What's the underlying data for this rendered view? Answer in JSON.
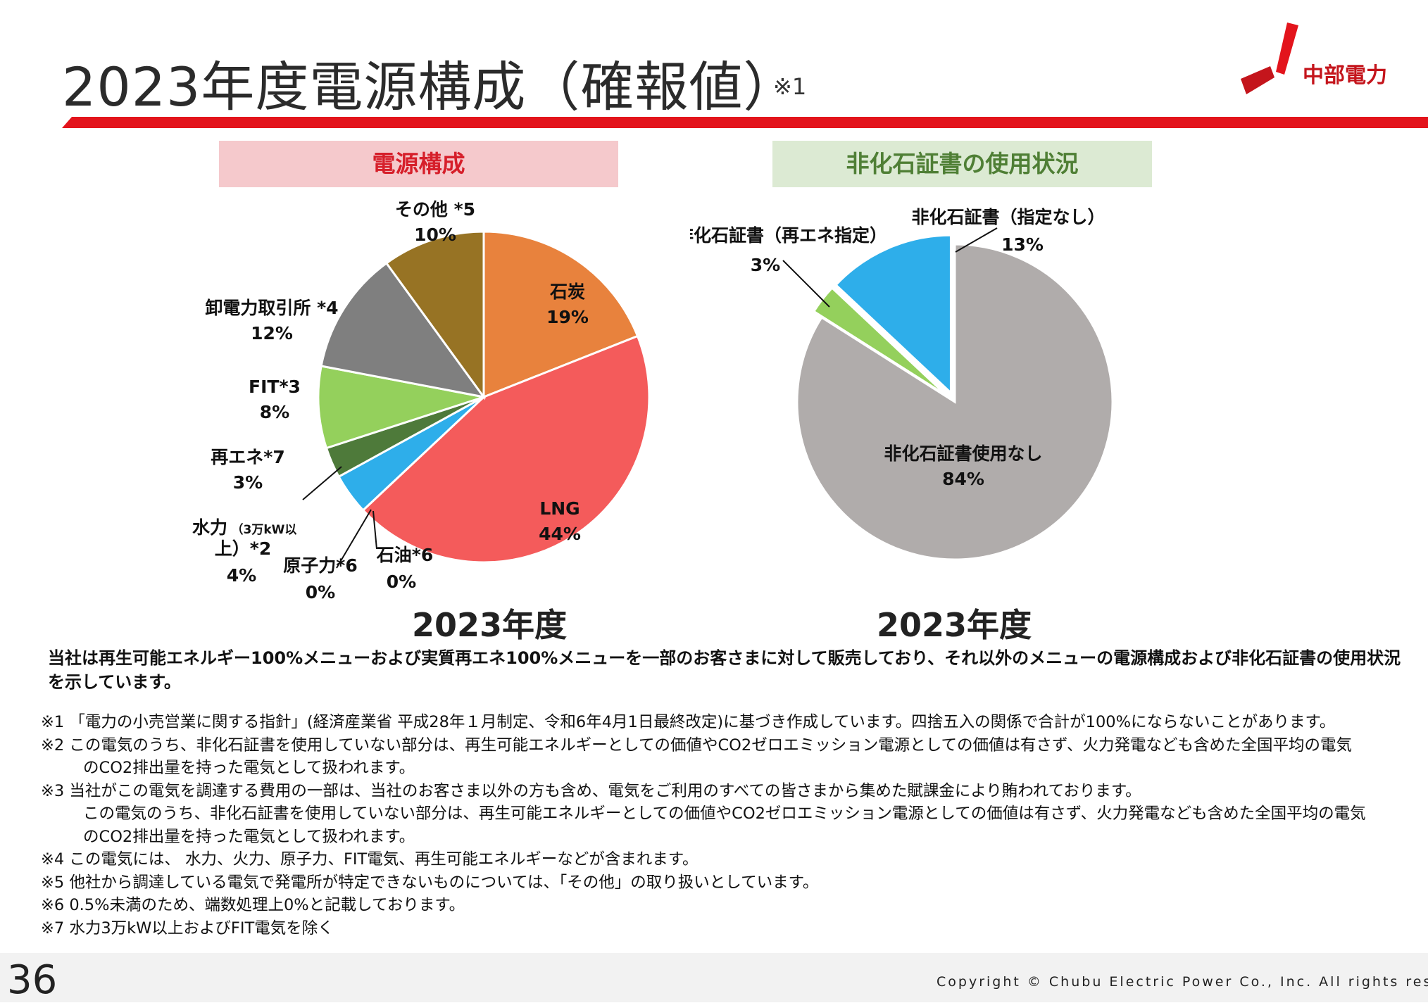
{
  "header": {
    "title": "2023年度電源構成（確報値）",
    "title_note": "※1",
    "logo_text": "中部電力",
    "brand_color": "#e3141c"
  },
  "chart_data": [
    {
      "type": "pie",
      "title": "電源構成",
      "caption": "2023年度",
      "slices": [
        {
          "label": "石炭",
          "value": 19,
          "display": "19%",
          "color": "#e8823d"
        },
        {
          "label": "LNG",
          "value": 44,
          "display": "44%",
          "color": "#f45b5b"
        },
        {
          "label": "石油*6",
          "value": 0,
          "display": "0%",
          "color": "#f4b183"
        },
        {
          "label": "原子力*6",
          "value": 0,
          "display": "0%",
          "color": "#ffd966"
        },
        {
          "label": "水力（3万kW以上）*2",
          "label_line1": "水力",
          "label_small": "（3万kW以",
          "label_line2": "上）*2",
          "value": 4,
          "display": "4%",
          "color": "#2eaeea"
        },
        {
          "label": "再エネ*7",
          "value": 3,
          "display": "3%",
          "color": "#4e7a3a"
        },
        {
          "label": "FIT*3",
          "value": 8,
          "display": "8%",
          "color": "#94d05c"
        },
        {
          "label": "卸電力取引所 *4",
          "value": 12,
          "display": "12%",
          "color": "#7f7f7f"
        },
        {
          "label": "その他 *5",
          "value": 10,
          "display": "10%",
          "color": "#977324"
        }
      ]
    },
    {
      "type": "pie",
      "title": "非化石証書の使用状況",
      "caption": "2023年度",
      "slices": [
        {
          "label": "非化石証書使用なし",
          "value": 84,
          "display": "84%",
          "color": "#b0acab"
        },
        {
          "label": "非化石証書（再エネ指定）",
          "value": 3,
          "display": "3%",
          "color": "#94d05c"
        },
        {
          "label": "非化石証書（指定なし）",
          "value": 13,
          "display": "13%",
          "color": "#2eaeea"
        }
      ]
    }
  ],
  "description": "当社は再生可能エネルギー100%メニューおよび実質再エネ100%メニューを一部のお客さまに対して販売しており、それ以外のメニューの電源構成および非化石証書の使用状況を示しています。",
  "notes": [
    "※1 「電力の小売営業に関する指針」(経済産業省 平成28年１月制定、令和6年4月1日最終改定)に基づき作成しています。四捨五入の関係で合計が100%にならないことがあります。",
    "※2 この電気のうち、非化石証書を使用していない部分は、再生可能エネルギーとしての価値やCO2ゼロエミッション電源としての価値は有さず、火力発電なども含めた全国平均の電気",
    "のCO2排出量を持った電気として扱われます。",
    "※3 当社がこの電気を調達する費用の一部は、当社のお客さま以外の方も含め、電気をご利用のすべての皆さまから集めた賦課金により賄われております。",
    "この電気のうち、非化石証書を使用していない部分は、再生可能エネルギーとしての価値やCO2ゼロエミッション電源としての価値は有さず、火力発電なども含めた全国平均の電気",
    "のCO2排出量を持った電気として扱われます。",
    "※4 この電気には、 水力、火力、原子力、FIT電気、再生可能エネルギーなどが含まれます。",
    "※5 他社から調達している電気で発電所が特定できないものについては、「その他」の取り扱いとしています。",
    "※6 0.5%未満のため、端数処理上0%と記載しております。",
    "※7 水力3万kW以上およびFIT電気を除く"
  ],
  "footer": {
    "page_number": "36",
    "copyright": "Copyright © Chubu Electric Power Co., Inc. All rights reserved."
  }
}
